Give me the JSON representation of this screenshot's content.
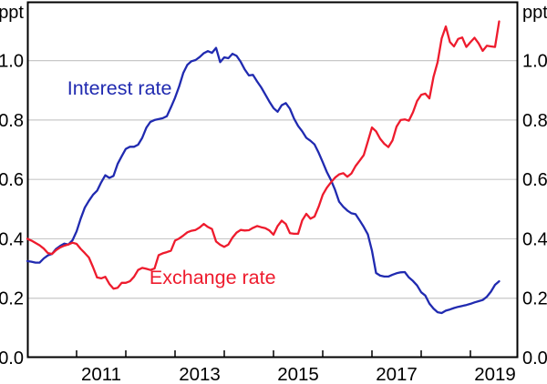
{
  "chart_data": {
    "type": "line",
    "title": "",
    "unit_label_left": "ppt",
    "unit_label_right": "ppt",
    "ylim": [
      0,
      1.198
    ],
    "yticks": [
      0.0,
      0.2,
      0.4,
      0.6,
      0.8,
      1.0
    ],
    "xlim": [
      2010,
      2019.963
    ],
    "xticks": [
      2011,
      2012,
      2013,
      2014,
      2015,
      2016,
      2017,
      2018,
      2019
    ],
    "xtick_labels": [
      "2011",
      "2013",
      "2015",
      "2017",
      "2019"
    ],
    "xtick_label_years": [
      2011,
      2013,
      2015,
      2017,
      2019
    ],
    "grid": true,
    "grid_color": "#c8c8c8",
    "axis_color": "#000000",
    "legend_position": "inline-labels",
    "series": [
      {
        "name": "Interest rate",
        "color": "#202ab0",
        "label_at": [
          2010.81,
          0.885
        ],
        "points": [
          [
            2010.0,
            0.325
          ],
          [
            2010.083,
            0.323
          ],
          [
            2010.167,
            0.32
          ],
          [
            2010.25,
            0.32
          ],
          [
            2010.333,
            0.334
          ],
          [
            2010.417,
            0.344
          ],
          [
            2010.5,
            0.349
          ],
          [
            2010.583,
            0.366
          ],
          [
            2010.667,
            0.376
          ],
          [
            2010.75,
            0.384
          ],
          [
            2010.833,
            0.381
          ],
          [
            2010.917,
            0.395
          ],
          [
            2011.0,
            0.425
          ],
          [
            2011.083,
            0.468
          ],
          [
            2011.167,
            0.505
          ],
          [
            2011.25,
            0.528
          ],
          [
            2011.333,
            0.548
          ],
          [
            2011.417,
            0.562
          ],
          [
            2011.5,
            0.59
          ],
          [
            2011.583,
            0.614
          ],
          [
            2011.667,
            0.605
          ],
          [
            2011.75,
            0.612
          ],
          [
            2011.833,
            0.652
          ],
          [
            2011.917,
            0.678
          ],
          [
            2012.0,
            0.703
          ],
          [
            2012.083,
            0.71
          ],
          [
            2012.167,
            0.71
          ],
          [
            2012.25,
            0.717
          ],
          [
            2012.333,
            0.74
          ],
          [
            2012.417,
            0.774
          ],
          [
            2012.5,
            0.794
          ],
          [
            2012.583,
            0.8
          ],
          [
            2012.667,
            0.803
          ],
          [
            2012.75,
            0.806
          ],
          [
            2012.833,
            0.813
          ],
          [
            2012.917,
            0.843
          ],
          [
            2013.0,
            0.875
          ],
          [
            2013.083,
            0.913
          ],
          [
            2013.167,
            0.958
          ],
          [
            2013.25,
            0.986
          ],
          [
            2013.333,
            0.998
          ],
          [
            2013.417,
            1.002
          ],
          [
            2013.5,
            1.012
          ],
          [
            2013.583,
            1.025
          ],
          [
            2013.667,
            1.032
          ],
          [
            2013.75,
            1.026
          ],
          [
            2013.833,
            1.043
          ],
          [
            2013.917,
            0.995
          ],
          [
            2014.0,
            1.011
          ],
          [
            2014.083,
            1.008
          ],
          [
            2014.167,
            1.023
          ],
          [
            2014.25,
            1.016
          ],
          [
            2014.333,
            0.996
          ],
          [
            2014.417,
            0.97
          ],
          [
            2014.5,
            0.95
          ],
          [
            2014.583,
            0.952
          ],
          [
            2014.667,
            0.93
          ],
          [
            2014.75,
            0.91
          ],
          [
            2014.833,
            0.886
          ],
          [
            2014.917,
            0.862
          ],
          [
            2015.0,
            0.84
          ],
          [
            2015.083,
            0.828
          ],
          [
            2015.167,
            0.85
          ],
          [
            2015.25,
            0.857
          ],
          [
            2015.333,
            0.838
          ],
          [
            2015.417,
            0.805
          ],
          [
            2015.5,
            0.78
          ],
          [
            2015.583,
            0.762
          ],
          [
            2015.667,
            0.74
          ],
          [
            2015.75,
            0.73
          ],
          [
            2015.833,
            0.718
          ],
          [
            2015.917,
            0.69
          ],
          [
            2016.0,
            0.658
          ],
          [
            2016.083,
            0.625
          ],
          [
            2016.167,
            0.598
          ],
          [
            2016.25,
            0.565
          ],
          [
            2016.333,
            0.525
          ],
          [
            2016.417,
            0.508
          ],
          [
            2016.5,
            0.495
          ],
          [
            2016.583,
            0.486
          ],
          [
            2016.667,
            0.483
          ],
          [
            2016.75,
            0.462
          ],
          [
            2016.833,
            0.44
          ],
          [
            2016.917,
            0.415
          ],
          [
            2017.0,
            0.36
          ],
          [
            2017.083,
            0.285
          ],
          [
            2017.167,
            0.276
          ],
          [
            2017.25,
            0.273
          ],
          [
            2017.333,
            0.273
          ],
          [
            2017.417,
            0.279
          ],
          [
            2017.5,
            0.284
          ],
          [
            2017.583,
            0.287
          ],
          [
            2017.667,
            0.288
          ],
          [
            2017.75,
            0.27
          ],
          [
            2017.833,
            0.258
          ],
          [
            2017.917,
            0.243
          ],
          [
            2018.0,
            0.22
          ],
          [
            2018.083,
            0.209
          ],
          [
            2018.167,
            0.182
          ],
          [
            2018.25,
            0.165
          ],
          [
            2018.333,
            0.153
          ],
          [
            2018.417,
            0.15
          ],
          [
            2018.5,
            0.158
          ],
          [
            2018.583,
            0.162
          ],
          [
            2018.667,
            0.167
          ],
          [
            2018.75,
            0.171
          ],
          [
            2018.833,
            0.174
          ],
          [
            2018.917,
            0.177
          ],
          [
            2019.0,
            0.181
          ],
          [
            2019.083,
            0.186
          ],
          [
            2019.167,
            0.19
          ],
          [
            2019.25,
            0.194
          ],
          [
            2019.333,
            0.205
          ],
          [
            2019.417,
            0.222
          ],
          [
            2019.5,
            0.245
          ],
          [
            2019.583,
            0.257
          ]
        ]
      },
      {
        "name": "Exchange rate",
        "color": "#ee1b2d",
        "label_at": [
          2012.48,
          0.248
        ],
        "points": [
          [
            2010.0,
            0.4
          ],
          [
            2010.083,
            0.394
          ],
          [
            2010.167,
            0.386
          ],
          [
            2010.25,
            0.378
          ],
          [
            2010.333,
            0.367
          ],
          [
            2010.417,
            0.352
          ],
          [
            2010.5,
            0.349
          ],
          [
            2010.583,
            0.362
          ],
          [
            2010.667,
            0.371
          ],
          [
            2010.75,
            0.377
          ],
          [
            2010.833,
            0.381
          ],
          [
            2010.917,
            0.387
          ],
          [
            2011.0,
            0.383
          ],
          [
            2011.083,
            0.366
          ],
          [
            2011.167,
            0.352
          ],
          [
            2011.25,
            0.337
          ],
          [
            2011.333,
            0.305
          ],
          [
            2011.417,
            0.27
          ],
          [
            2011.5,
            0.267
          ],
          [
            2011.583,
            0.272
          ],
          [
            2011.667,
            0.248
          ],
          [
            2011.75,
            0.232
          ],
          [
            2011.833,
            0.235
          ],
          [
            2011.917,
            0.252
          ],
          [
            2012.0,
            0.252
          ],
          [
            2012.083,
            0.257
          ],
          [
            2012.167,
            0.272
          ],
          [
            2012.25,
            0.295
          ],
          [
            2012.333,
            0.302
          ],
          [
            2012.417,
            0.299
          ],
          [
            2012.5,
            0.295
          ],
          [
            2012.583,
            0.3
          ],
          [
            2012.667,
            0.345
          ],
          [
            2012.75,
            0.351
          ],
          [
            2012.833,
            0.355
          ],
          [
            2012.917,
            0.36
          ],
          [
            2013.0,
            0.394
          ],
          [
            2013.083,
            0.401
          ],
          [
            2013.167,
            0.411
          ],
          [
            2013.25,
            0.422
          ],
          [
            2013.333,
            0.427
          ],
          [
            2013.417,
            0.43
          ],
          [
            2013.5,
            0.438
          ],
          [
            2013.583,
            0.45
          ],
          [
            2013.667,
            0.44
          ],
          [
            2013.75,
            0.433
          ],
          [
            2013.833,
            0.391
          ],
          [
            2013.917,
            0.38
          ],
          [
            2014.0,
            0.373
          ],
          [
            2014.083,
            0.381
          ],
          [
            2014.167,
            0.404
          ],
          [
            2014.25,
            0.421
          ],
          [
            2014.333,
            0.43
          ],
          [
            2014.417,
            0.428
          ],
          [
            2014.5,
            0.429
          ],
          [
            2014.583,
            0.437
          ],
          [
            2014.667,
            0.443
          ],
          [
            2014.75,
            0.439
          ],
          [
            2014.833,
            0.436
          ],
          [
            2014.917,
            0.428
          ],
          [
            2015.0,
            0.414
          ],
          [
            2015.083,
            0.443
          ],
          [
            2015.167,
            0.461
          ],
          [
            2015.25,
            0.45
          ],
          [
            2015.333,
            0.419
          ],
          [
            2015.417,
            0.417
          ],
          [
            2015.5,
            0.417
          ],
          [
            2015.583,
            0.462
          ],
          [
            2015.667,
            0.484
          ],
          [
            2015.75,
            0.468
          ],
          [
            2015.833,
            0.475
          ],
          [
            2015.917,
            0.508
          ],
          [
            2016.0,
            0.548
          ],
          [
            2016.083,
            0.572
          ],
          [
            2016.167,
            0.59
          ],
          [
            2016.25,
            0.606
          ],
          [
            2016.333,
            0.617
          ],
          [
            2016.417,
            0.621
          ],
          [
            2016.5,
            0.609
          ],
          [
            2016.583,
            0.62
          ],
          [
            2016.667,
            0.645
          ],
          [
            2016.75,
            0.663
          ],
          [
            2016.833,
            0.682
          ],
          [
            2016.917,
            0.728
          ],
          [
            2017.0,
            0.775
          ],
          [
            2017.083,
            0.762
          ],
          [
            2017.167,
            0.737
          ],
          [
            2017.25,
            0.72
          ],
          [
            2017.333,
            0.709
          ],
          [
            2017.417,
            0.731
          ],
          [
            2017.5,
            0.778
          ],
          [
            2017.583,
            0.8
          ],
          [
            2017.667,
            0.802
          ],
          [
            2017.75,
            0.798
          ],
          [
            2017.833,
            0.826
          ],
          [
            2017.917,
            0.864
          ],
          [
            2018.0,
            0.885
          ],
          [
            2018.083,
            0.889
          ],
          [
            2018.167,
            0.873
          ],
          [
            2018.25,
            0.945
          ],
          [
            2018.333,
            0.995
          ],
          [
            2018.417,
            1.075
          ],
          [
            2018.5,
            1.115
          ],
          [
            2018.583,
            1.063
          ],
          [
            2018.667,
            1.048
          ],
          [
            2018.75,
            1.073
          ],
          [
            2018.833,
            1.078
          ],
          [
            2018.917,
            1.046
          ],
          [
            2019.0,
            1.062
          ],
          [
            2019.083,
            1.077
          ],
          [
            2019.167,
            1.058
          ],
          [
            2019.25,
            1.033
          ],
          [
            2019.333,
            1.05
          ],
          [
            2019.417,
            1.048
          ],
          [
            2019.5,
            1.046
          ],
          [
            2019.583,
            1.132
          ]
        ]
      }
    ]
  }
}
